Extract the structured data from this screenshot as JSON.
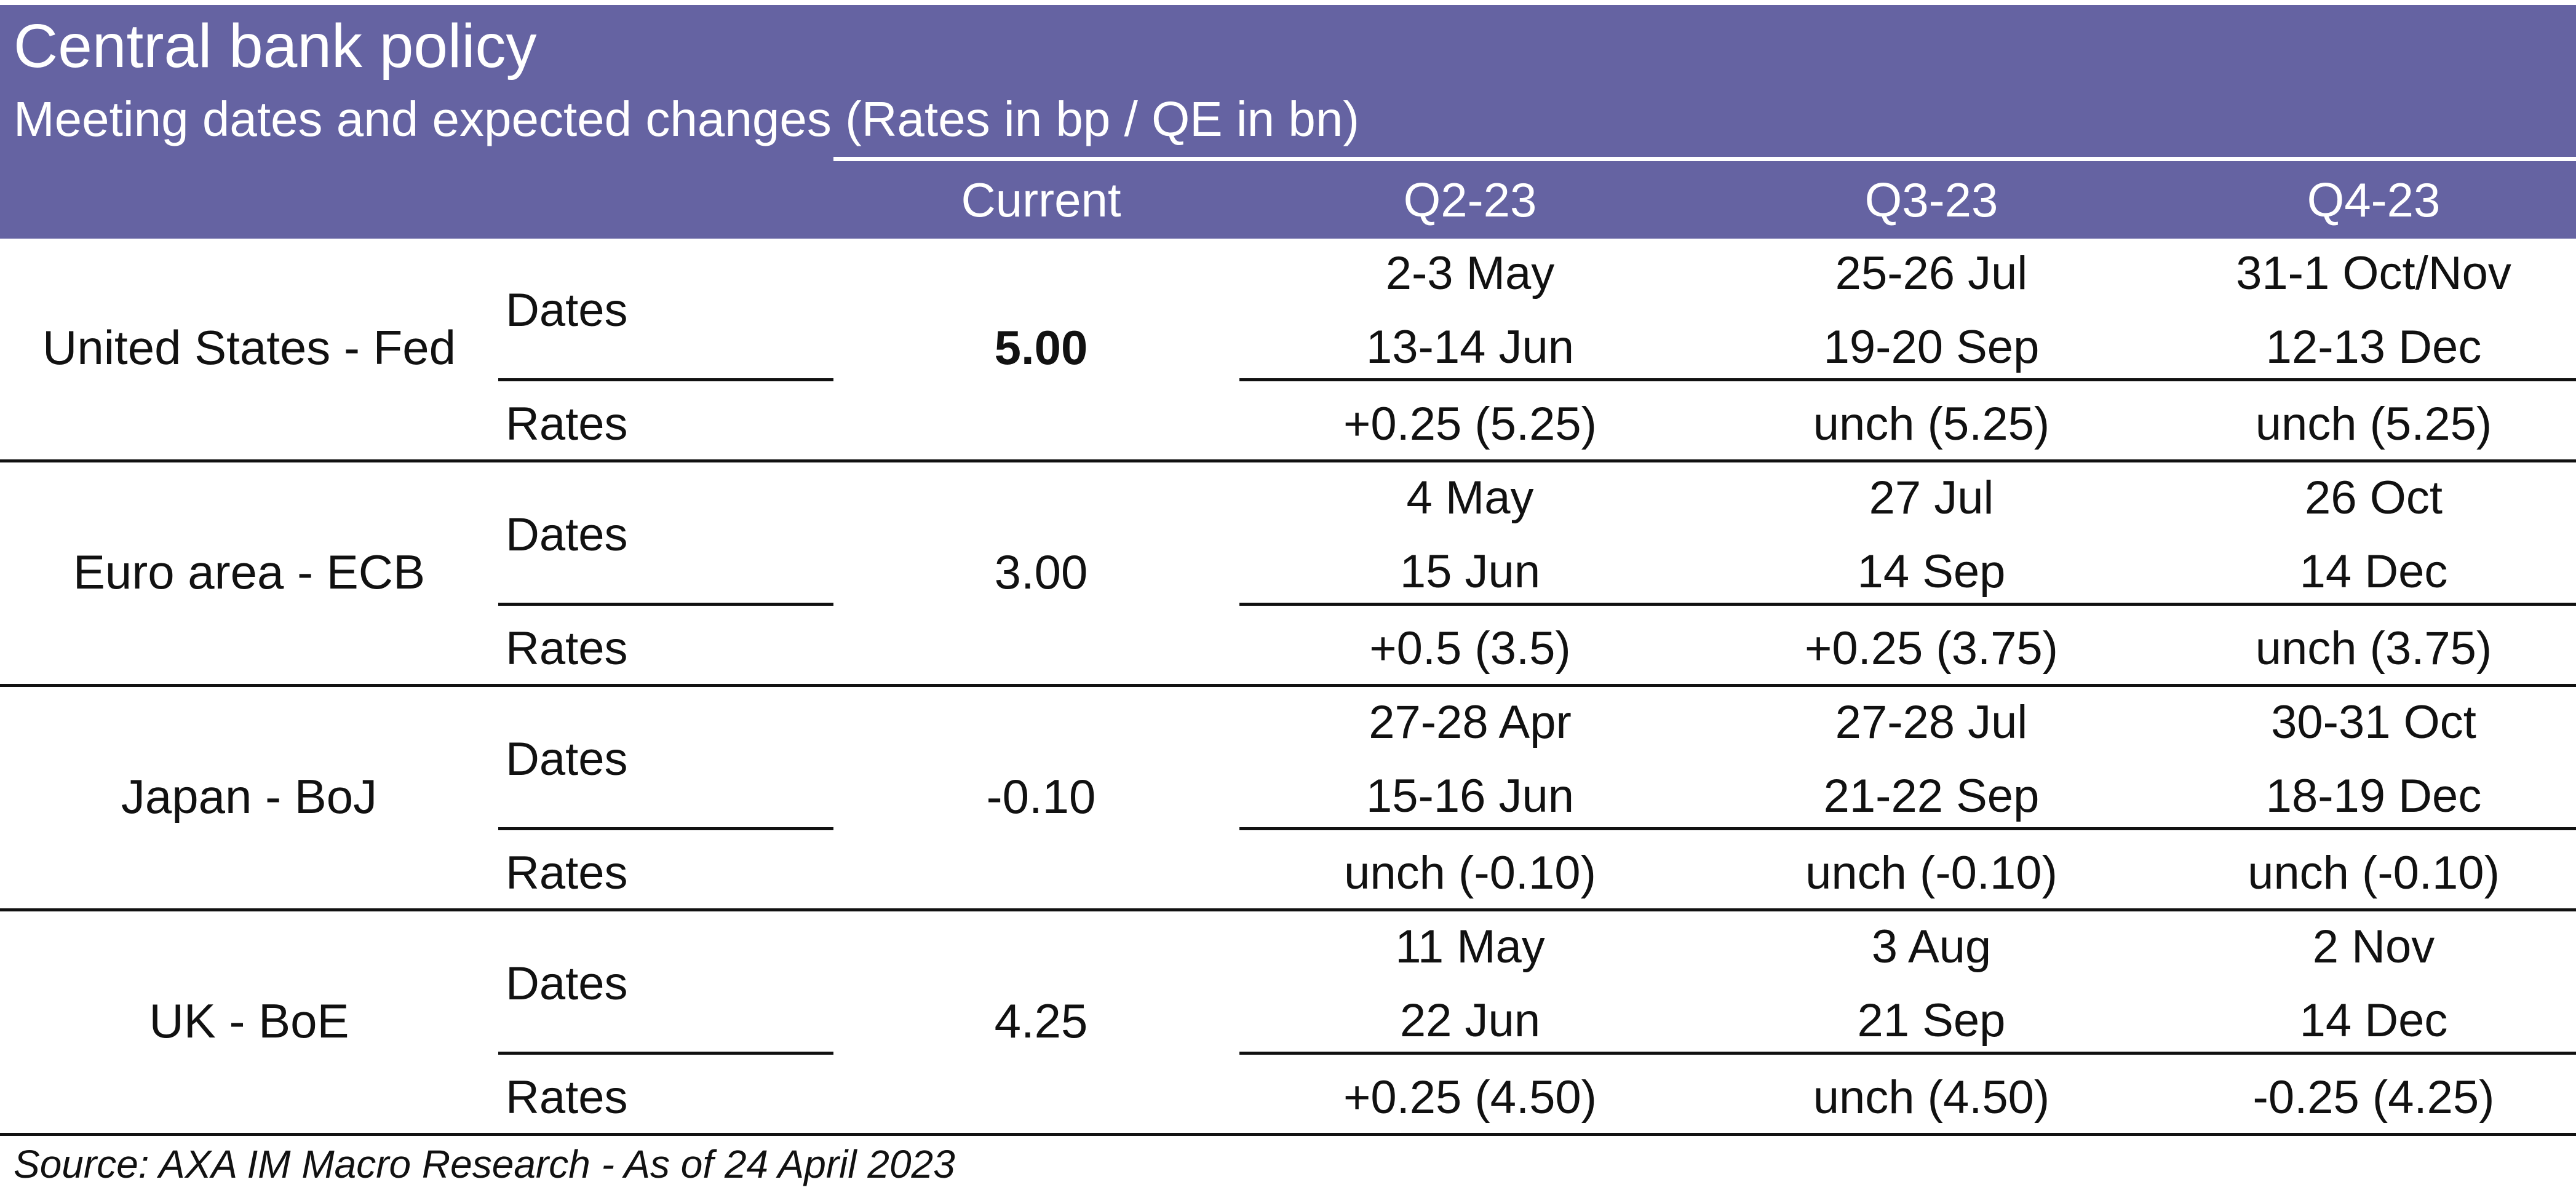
{
  "title": "Central bank policy",
  "subtitle": "Meeting dates and expected changes (Rates in bp / QE in bn)",
  "columns": [
    "Current",
    "Q2-23",
    "Q3-23",
    "Q4-23"
  ],
  "rows": [
    {
      "bank": "United States - Fed",
      "current": "5.00",
      "dates_label": "Dates",
      "rates_label": "Rates",
      "dates": [
        [
          "2-3 May",
          "13-14 Jun"
        ],
        [
          "25-26 Jul",
          "19-20 Sep"
        ],
        [
          "31-1 Oct/Nov",
          "12-13 Dec"
        ]
      ],
      "rates": [
        "+0.25 (5.25)",
        "unch (5.25)",
        "unch (5.25)"
      ]
    },
    {
      "bank": "Euro area - ECB",
      "current": "3.00",
      "dates_label": "Dates",
      "rates_label": "Rates",
      "dates": [
        [
          "4 May",
          "15 Jun"
        ],
        [
          "27 Jul",
          "14 Sep"
        ],
        [
          "26 Oct",
          "14 Dec"
        ]
      ],
      "rates": [
        "+0.5 (3.5)",
        "+0.25 (3.75)",
        "unch (3.75)"
      ]
    },
    {
      "bank": "Japan - BoJ",
      "current": "-0.10",
      "dates_label": "Dates",
      "rates_label": "Rates",
      "dates": [
        [
          "27-28 Apr",
          "15-16 Jun"
        ],
        [
          "27-28 Jul",
          "21-22 Sep"
        ],
        [
          "30-31 Oct",
          "18-19 Dec"
        ]
      ],
      "rates": [
        "unch (-0.10)",
        "unch (-0.10)",
        "unch (-0.10)"
      ]
    },
    {
      "bank": "UK - BoE",
      "current": "4.25",
      "dates_label": "Dates",
      "rates_label": "Rates",
      "dates": [
        [
          "11 May",
          "22 Jun"
        ],
        [
          "3 Aug",
          "21 Sep"
        ],
        [
          "2 Nov",
          "14 Dec"
        ]
      ],
      "rates": [
        "+0.25 (4.50)",
        "unch (4.50)",
        "-0.25 (4.25)"
      ]
    }
  ],
  "source": "Source: AXA IM Macro Research - As of 24 April 2023",
  "colors": {
    "banner": "#6563a2",
    "header_text": "#ffffff",
    "body_text": "#111111"
  }
}
